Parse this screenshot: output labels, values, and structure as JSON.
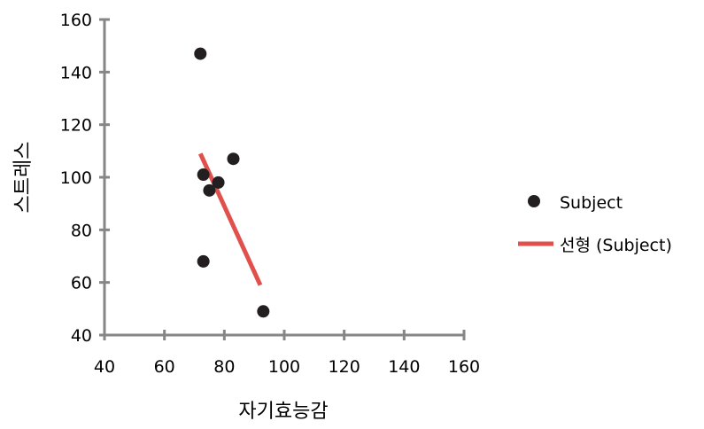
{
  "chart_data": {
    "type": "scatter",
    "xlabel": "자기효능감",
    "ylabel": "스트레스",
    "xlim": [
      40,
      160
    ],
    "ylim": [
      40,
      160
    ],
    "x_ticks": [
      "40",
      "60",
      "80",
      "100",
      "120",
      "140",
      "160"
    ],
    "y_ticks": [
      "40",
      "60",
      "80",
      "100",
      "120",
      "140",
      "160"
    ],
    "grid": false,
    "legend_position": "right",
    "series": [
      {
        "name": "Subject",
        "kind": "scatter",
        "color": "#231f20",
        "points": [
          {
            "x": 72,
            "y": 147
          },
          {
            "x": 73,
            "y": 101
          },
          {
            "x": 73,
            "y": 68
          },
          {
            "x": 75,
            "y": 95
          },
          {
            "x": 78,
            "y": 98
          },
          {
            "x": 83,
            "y": 107
          },
          {
            "x": 93,
            "y": 49
          }
        ]
      },
      {
        "name": "선형 (Subject)",
        "kind": "line",
        "color": "#e0504d",
        "points": [
          {
            "x": 72,
            "y": 109
          },
          {
            "x": 92,
            "y": 59
          }
        ]
      }
    ]
  }
}
